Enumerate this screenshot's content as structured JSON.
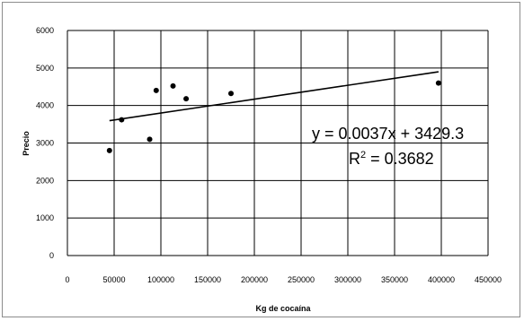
{
  "chart_data": {
    "type": "scatter",
    "title": "",
    "xlabel": "Kg de cocaína",
    "ylabel": "Precio",
    "xlim": [
      0,
      450000
    ],
    "ylim": [
      0,
      6000
    ],
    "x_ticks": [
      "0",
      "50000",
      "100000",
      "150000",
      "200000",
      "250000",
      "300000",
      "350000",
      "400000",
      "450000"
    ],
    "y_ticks": [
      "0",
      "1000",
      "2000",
      "3000",
      "4000",
      "5000",
      "6000"
    ],
    "grid": true,
    "legend": "none",
    "points": [
      {
        "x": 45000,
        "y": 2800
      },
      {
        "x": 58000,
        "y": 3620
      },
      {
        "x": 88000,
        "y": 3100
      },
      {
        "x": 95000,
        "y": 4400
      },
      {
        "x": 113000,
        "y": 4520
      },
      {
        "x": 127000,
        "y": 4180
      },
      {
        "x": 175000,
        "y": 4320
      },
      {
        "x": 397000,
        "y": 4600
      }
    ],
    "trendline": {
      "slope": 0.0037,
      "intercept": 3429.3,
      "x_range": [
        45000,
        397000
      ]
    },
    "annotations": {
      "equation": "y = 0.0037x + 3429.3",
      "r2_prefix": "R",
      "r2_sup": "2",
      "r2_rest": " = 0.3682"
    },
    "colors": {
      "points": "#000000",
      "trendline": "#000000",
      "grid": "#000000"
    }
  }
}
